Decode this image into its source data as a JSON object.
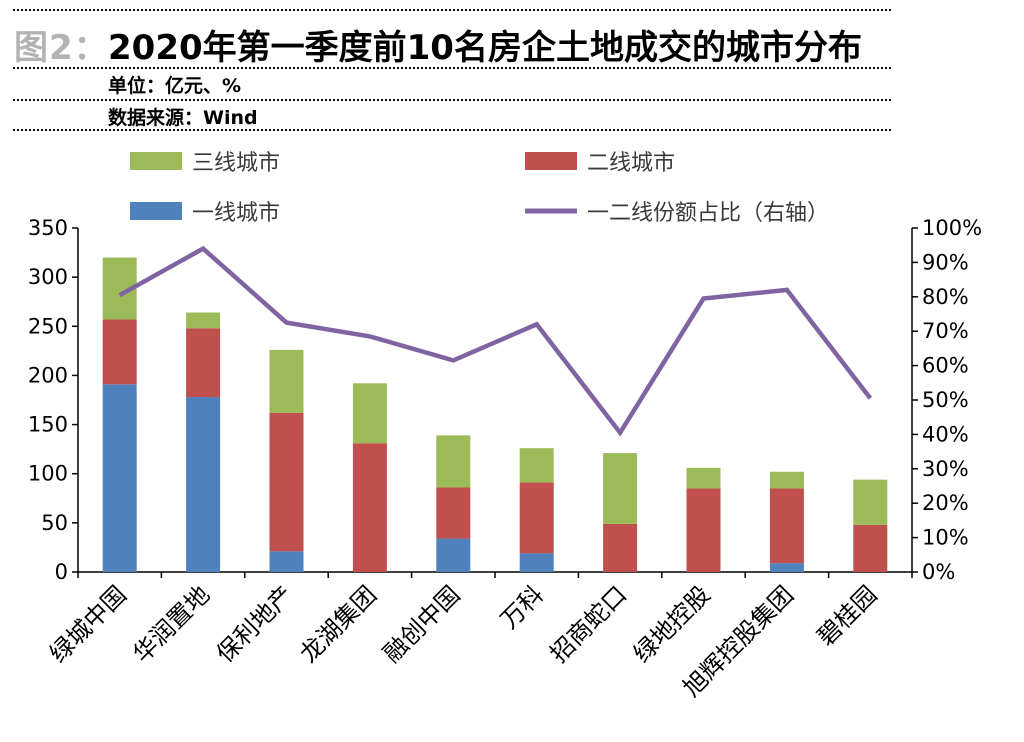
{
  "header": {
    "figure_prefix": "图2：",
    "title": "2020年第一季度前10名房企土地成交的城市分布",
    "unit": "单位：亿元、%",
    "source": "数据来源：Wind"
  },
  "colors": {
    "tier1": "#4f81bd",
    "tier2": "#c0504d",
    "tier3": "#9bbb59",
    "share": "#8064a2",
    "axis": "#000000"
  },
  "chart_data": {
    "type": "bar",
    "stacked": true,
    "categories": [
      "绿城中国",
      "华润置地",
      "保利地产",
      "龙湖集团",
      "融创中国",
      "万科",
      "招商蛇口",
      "绿地控股",
      "旭辉控股集团",
      "碧桂园"
    ],
    "series": [
      {
        "name": "一线城市",
        "type": "bar",
        "values": [
          191,
          178,
          21,
          0,
          34,
          19,
          0,
          0,
          9,
          0
        ]
      },
      {
        "name": "二线城市",
        "type": "bar",
        "values": [
          66,
          70,
          141,
          131,
          52,
          72,
          49,
          85,
          76,
          48
        ]
      },
      {
        "name": "三线城市",
        "type": "bar",
        "values": [
          63,
          16,
          64,
          61,
          53,
          35,
          72,
          21,
          17,
          46
        ]
      },
      {
        "name": "一二线份额占比（右轴）",
        "type": "line",
        "axis": "right",
        "values": [
          80.5,
          94,
          72.5,
          68.5,
          61.5,
          72,
          40.5,
          79.5,
          82,
          50.5
        ]
      }
    ],
    "legend": [
      "三线城市",
      "二线城市",
      "一线城市",
      "一二线份额占比（右轴）"
    ],
    "ylim": [
      0,
      350
    ],
    "yticks": [
      "0",
      "50",
      "100",
      "150",
      "200",
      "250",
      "300",
      "350"
    ],
    "y2lim": [
      0,
      100
    ],
    "y2ticks": [
      "0%",
      "10%",
      "20%",
      "30%",
      "40%",
      "50%",
      "60%",
      "70%",
      "80%",
      "90%",
      "100%"
    ],
    "title": "2020年第一季度前10名房企土地成交的城市分布",
    "ylabel": "亿元",
    "y2label": "%",
    "xlabel": ""
  }
}
